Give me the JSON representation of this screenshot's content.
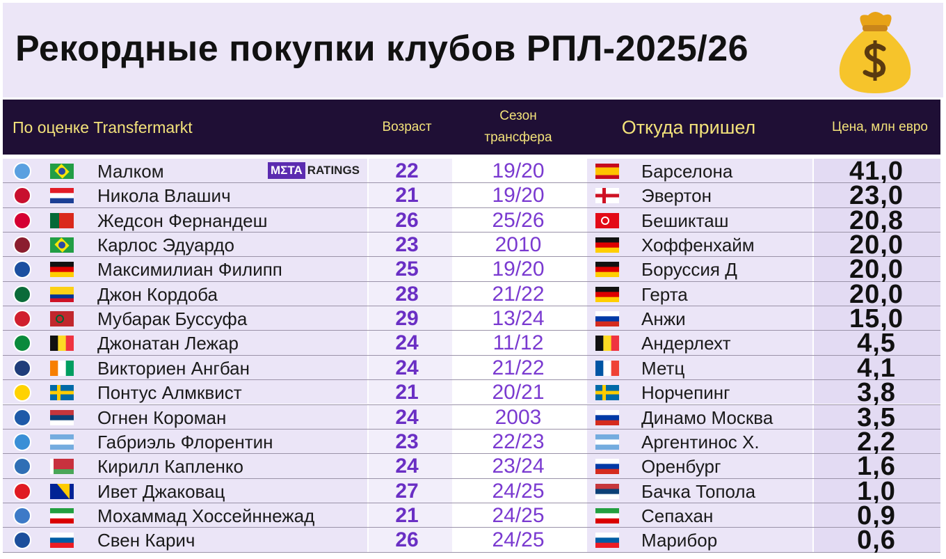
{
  "header": {
    "title": "Рекордные покупки клубов РПЛ-2025/26",
    "columns": {
      "source": "По оценке Transfermarkt",
      "age": "Возраст",
      "season": [
        "Сезон",
        "трансфера"
      ],
      "from": "Откуда пришел",
      "price": "Цена, млн евро"
    }
  },
  "badge": [
    "ΜΣΤΑ",
    "RATINGS"
  ],
  "table": {
    "rows": [
      [
        "Малком",
        22,
        "19/20",
        "Барселона",
        "41,0"
      ],
      [
        "Никола Влашич",
        21,
        "19/20",
        "Эвертон",
        "23,0"
      ],
      [
        "Жедсон Фернандеш",
        26,
        "25/26",
        "Бешикташ",
        "20,8"
      ],
      [
        "Карлос Эдуардо",
        23,
        "2010",
        "Хоффенхайм",
        "20,0"
      ],
      [
        "Максимилиан Филипп",
        25,
        "19/20",
        "Боруссия Д",
        "20,0"
      ],
      [
        "Джон Кордоба",
        28,
        "21/22",
        "Герта",
        "20,0"
      ],
      [
        "Мубарак Буссуфа",
        29,
        "13/24",
        "Анжи",
        "15,0"
      ],
      [
        "Джонатан Лежар",
        24,
        "11/12",
        "Андерлехт",
        "4,5"
      ],
      [
        "Викториен Ангбан",
        24,
        "21/22",
        "Метц",
        "4,1"
      ],
      [
        "Понтус Алмквист",
        21,
        "20/21",
        "Норчепинг",
        "3,8"
      ],
      [
        "Огнен Короман",
        24,
        "2003",
        "Динамо Москва",
        "3,5"
      ],
      [
        "Габриэль Флорентин",
        23,
        "22/23",
        "Аргентинос Х.",
        "2,2"
      ],
      [
        "Кирилл Капленко",
        24,
        "23/24",
        "Оренбург",
        "1,6"
      ],
      [
        "Ивет Джаковац",
        27,
        "24/25",
        "Бачка Топола",
        "1,0"
      ],
      [
        "Мохаммад Хоссейннежад",
        21,
        "24/25",
        "Сепахан",
        "0,9"
      ],
      [
        "Свен Карич",
        26,
        "24/25",
        "Марибор",
        "0,6"
      ]
    ]
  }
}
